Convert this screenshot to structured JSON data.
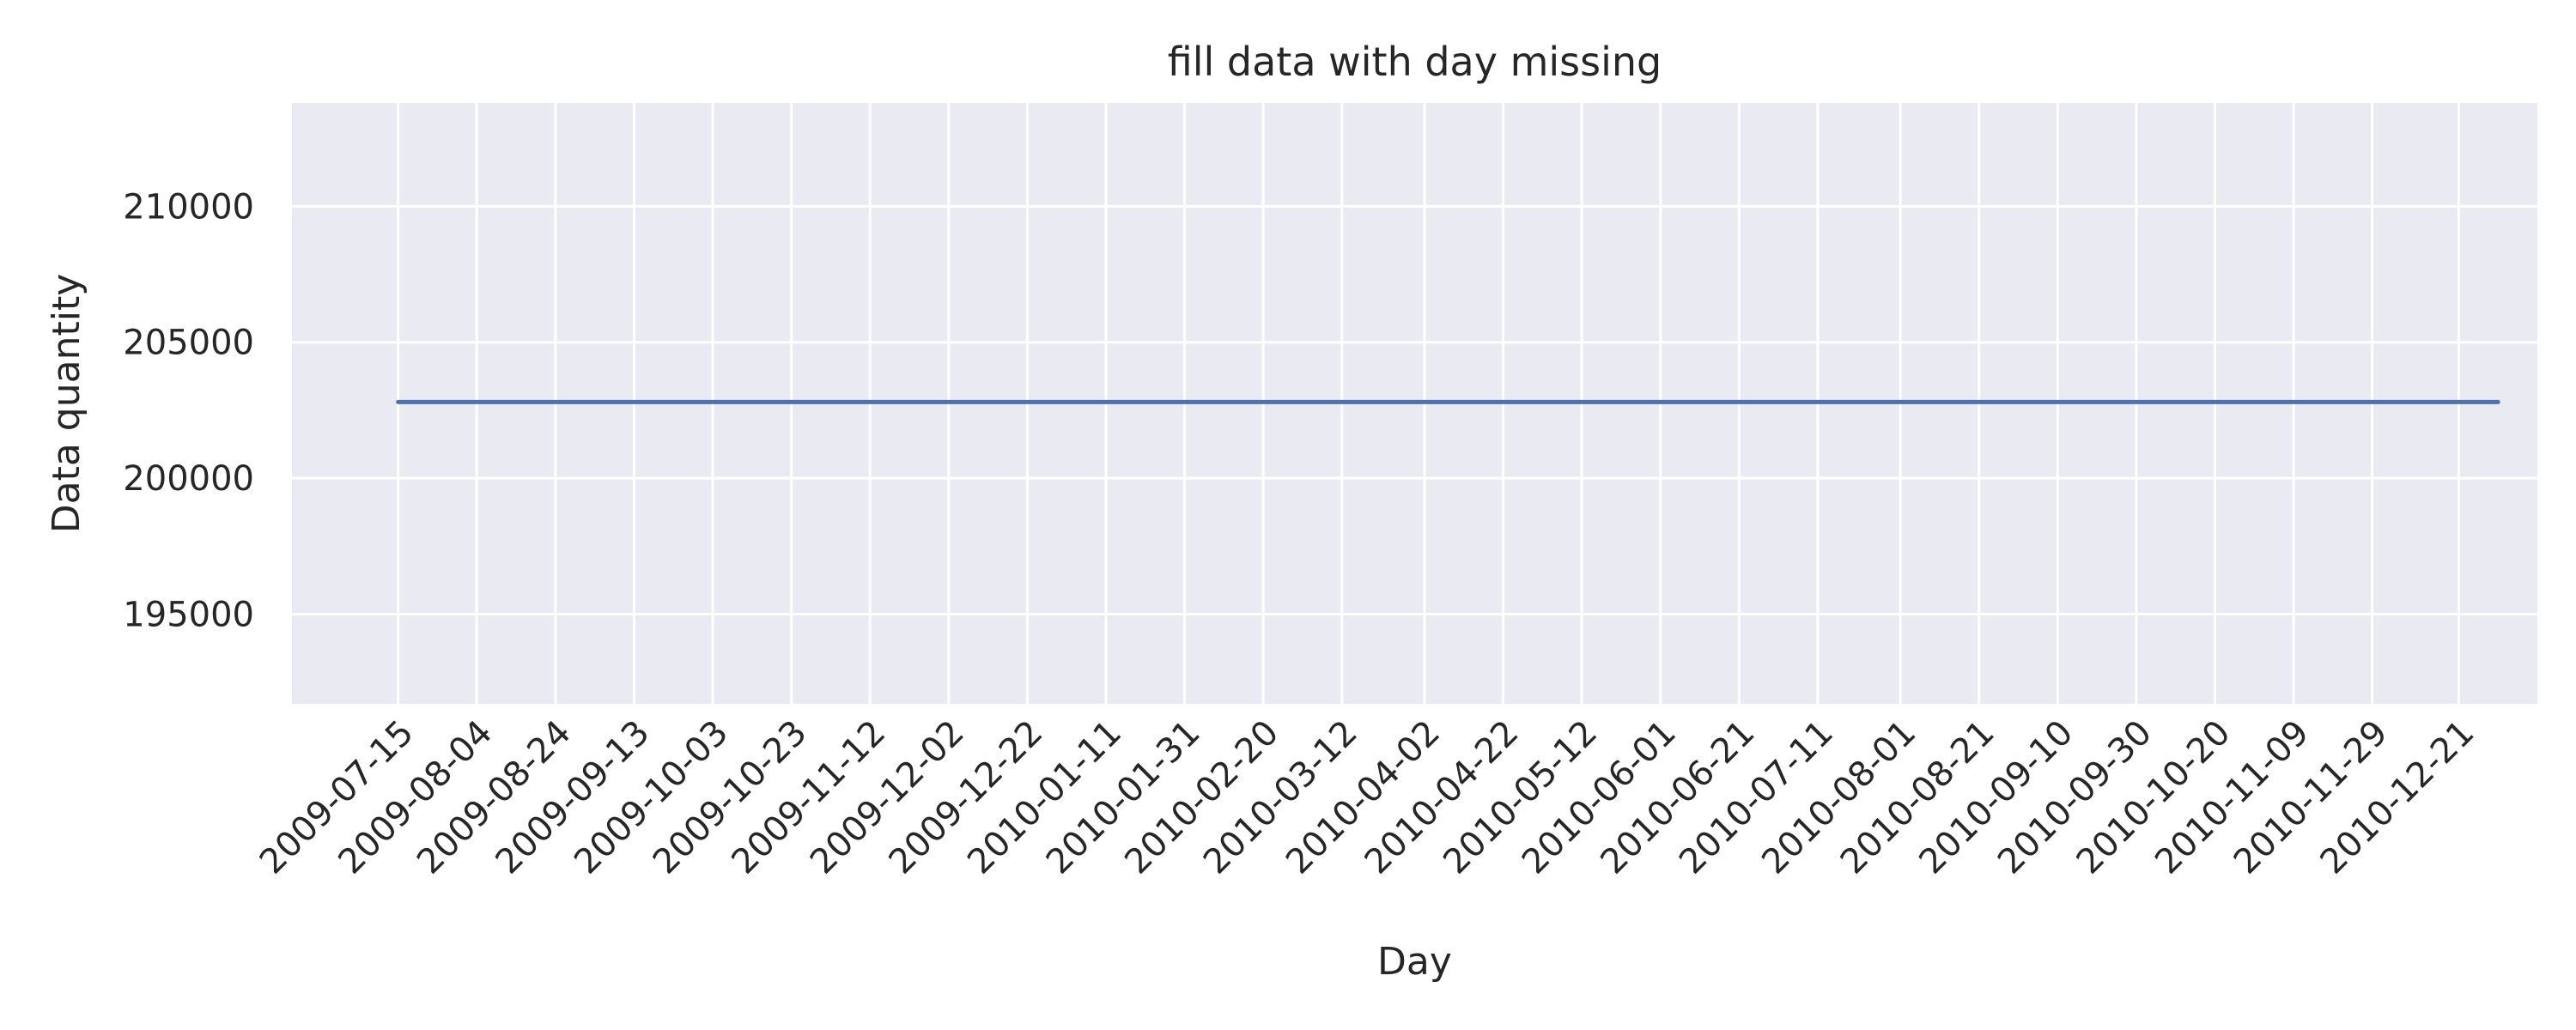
{
  "chart_data": {
    "type": "line",
    "title": "fill data with day missing",
    "xlabel": "Day",
    "ylabel": "Data quantity",
    "x_ticks": [
      "2009-07-15",
      "2009-08-04",
      "2009-08-24",
      "2009-09-13",
      "2009-10-03",
      "2009-10-23",
      "2009-11-12",
      "2009-12-02",
      "2009-12-22",
      "2010-01-11",
      "2010-01-31",
      "2010-02-20",
      "2010-03-12",
      "2010-04-02",
      "2010-04-22",
      "2010-05-12",
      "2010-06-01",
      "2010-06-21",
      "2010-07-11",
      "2010-08-01",
      "2010-08-21",
      "2010-09-10",
      "2010-09-30",
      "2010-10-20",
      "2010-11-09",
      "2010-11-29",
      "2010-12-21"
    ],
    "y_ticks": [
      195000,
      200000,
      205000,
      210000
    ],
    "ylim": [
      191700,
      213800
    ],
    "xlim": [
      "2009-06-18",
      "2011-01-10"
    ],
    "grid": true,
    "background": "#eaeaf2",
    "series": [
      {
        "color": "#4c72b0",
        "x": [
          "2009-07-15",
          "2010-12-31"
        ],
        "values": [
          202800,
          202800
        ]
      }
    ]
  }
}
